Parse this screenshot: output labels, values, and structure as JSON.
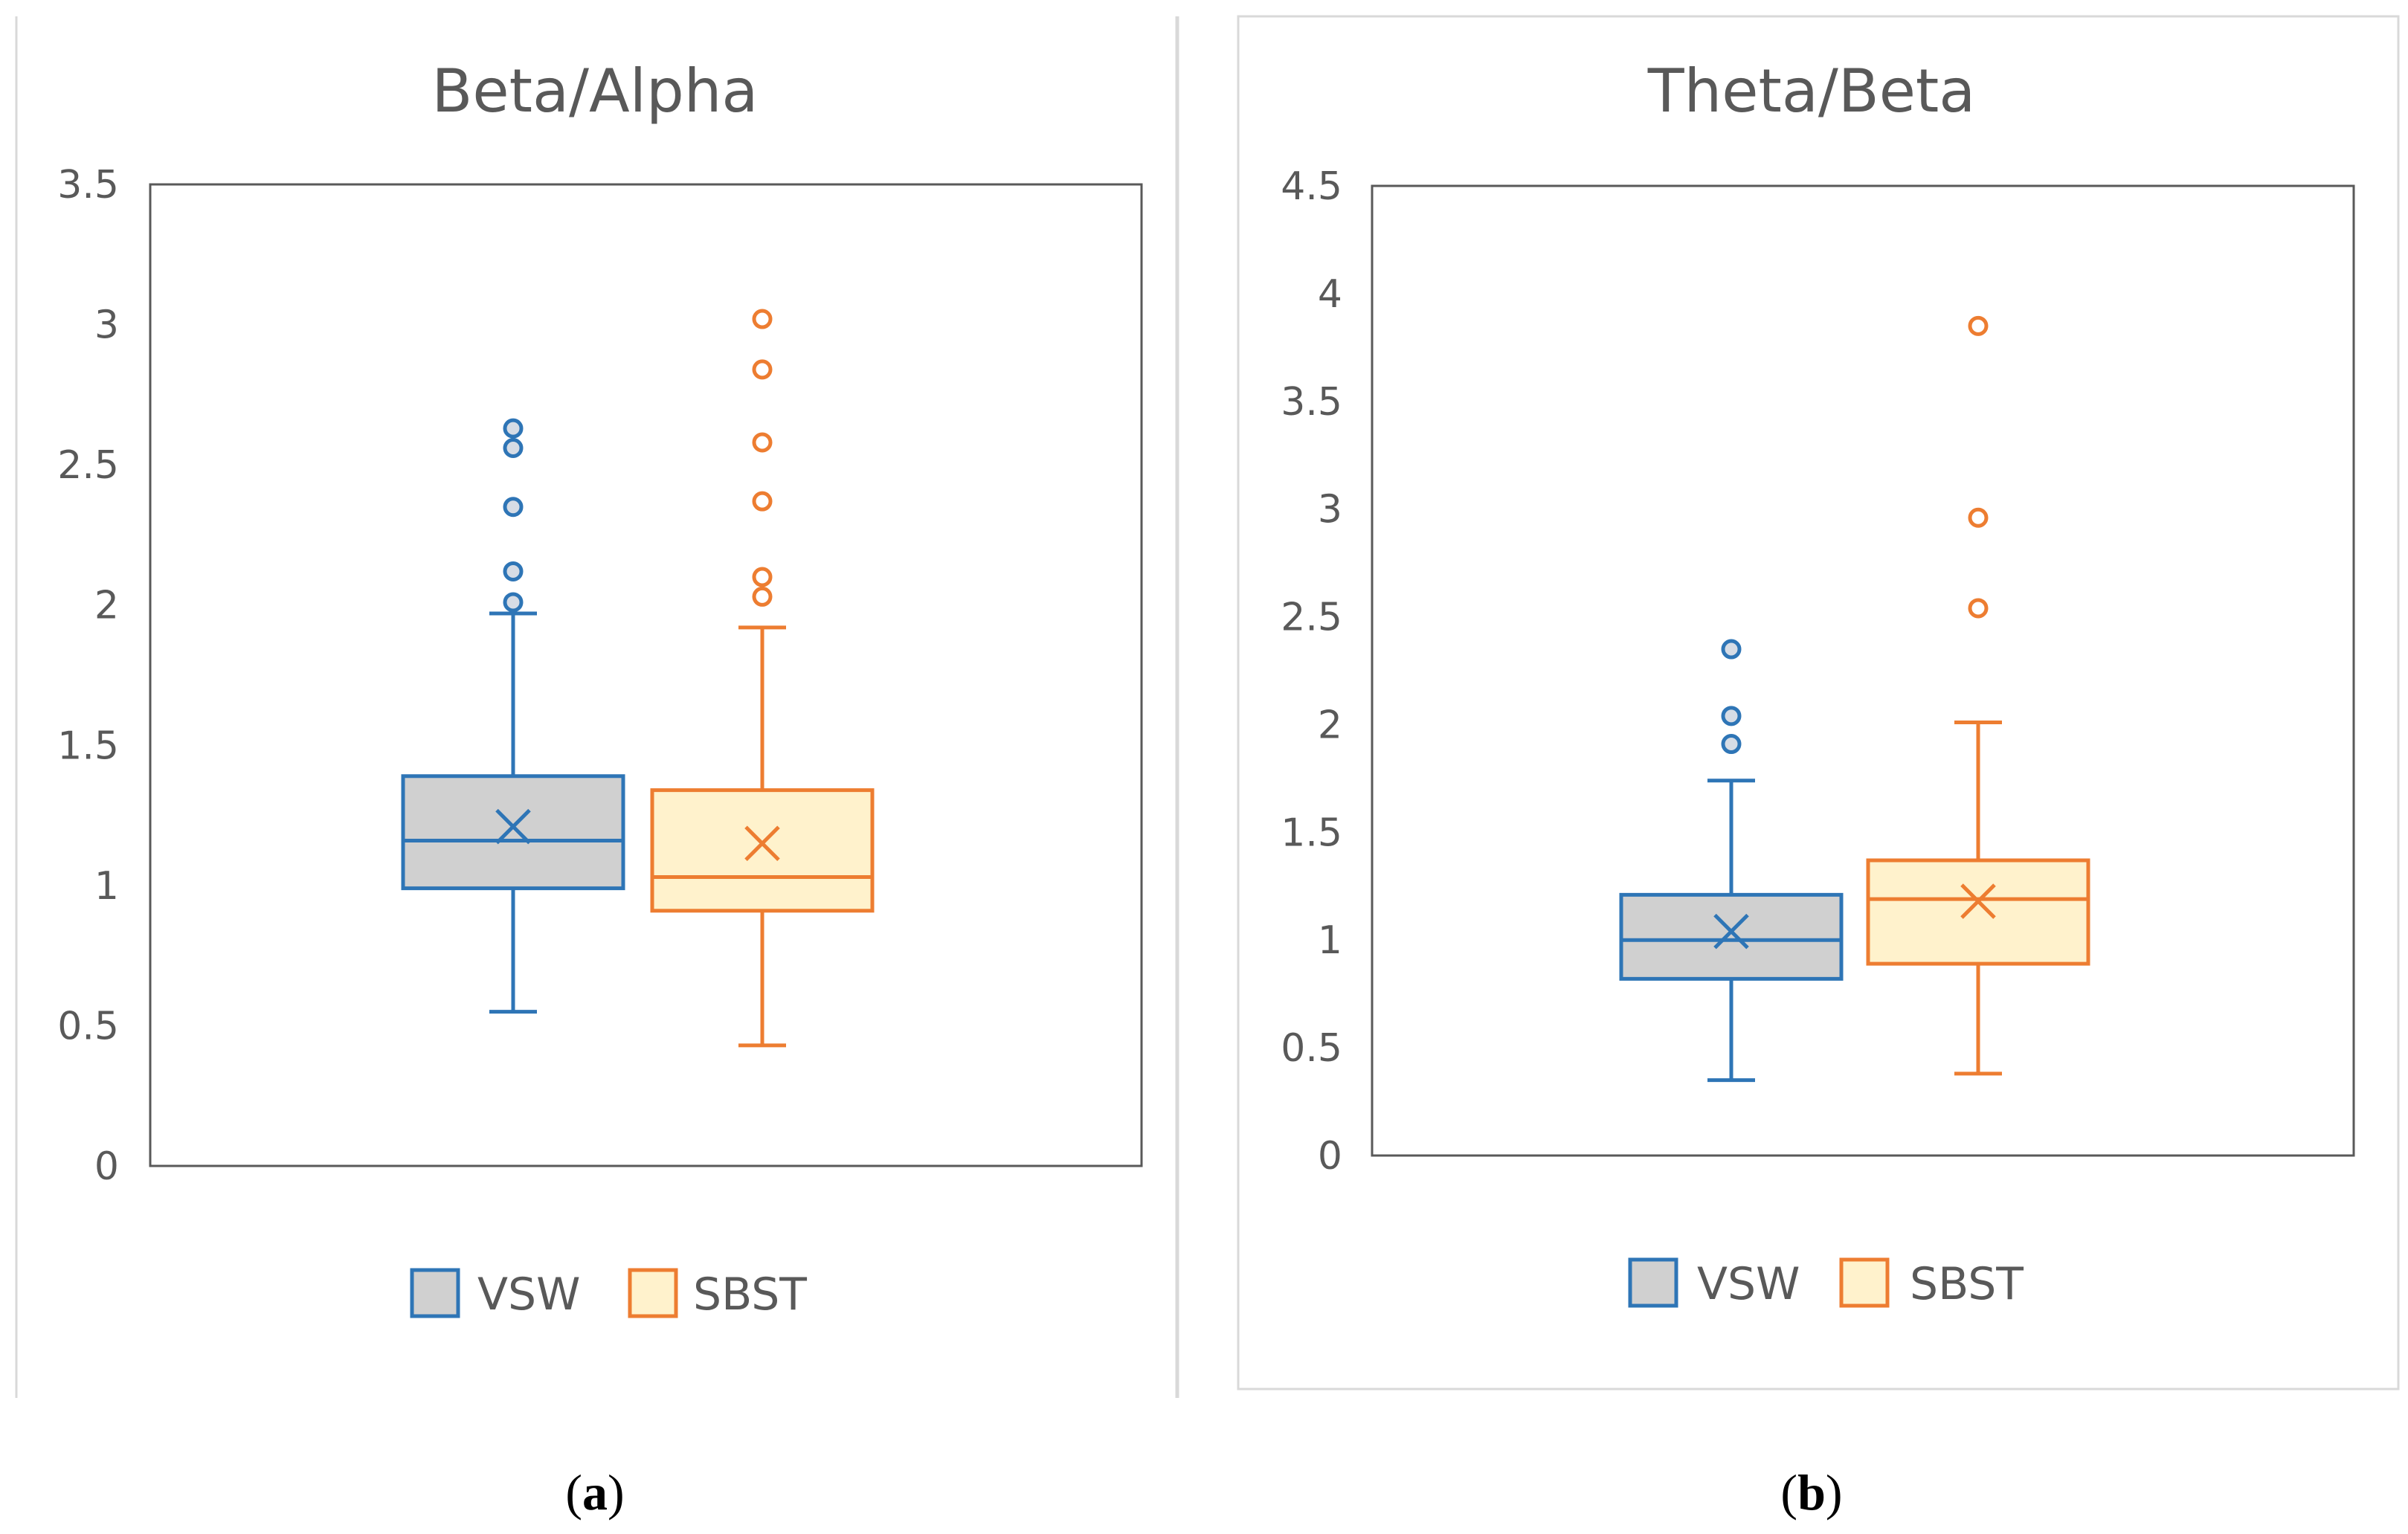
{
  "chart_data": [
    {
      "type": "box",
      "title": "Beta/Alpha",
      "ylim": [
        0,
        3.5
      ],
      "ytick_labels": [
        "0",
        "0.5",
        "1",
        "1.5",
        "2",
        "2.5",
        "3",
        "3.5"
      ],
      "series": [
        {
          "name": "VSW",
          "min": 0.55,
          "q1": 0.99,
          "median": 1.16,
          "q3": 1.39,
          "max": 1.97,
          "mean": 1.21,
          "outliers": [
            2.01,
            2.12,
            2.35,
            2.56,
            2.63
          ],
          "color": "#2e75b6",
          "fill": "#d0d0d0"
        },
        {
          "name": "SBST",
          "min": 0.43,
          "q1": 0.91,
          "median": 1.03,
          "q3": 1.34,
          "max": 1.92,
          "mean": 1.15,
          "outliers": [
            2.03,
            2.1,
            2.37,
            2.58,
            2.84,
            3.02
          ],
          "color": "#ed7d31",
          "fill": "#fff2cc"
        }
      ],
      "caption": "a"
    },
    {
      "type": "box",
      "title": "Theta/Beta",
      "ylim": [
        0,
        4.5
      ],
      "ytick_labels": [
        "0",
        "0.5",
        "1",
        "1.5",
        "2",
        "2.5",
        "3",
        "3.5",
        "4",
        "4.5"
      ],
      "series": [
        {
          "name": "VSW",
          "min": 0.35,
          "q1": 0.82,
          "median": 1.0,
          "q3": 1.21,
          "max": 1.74,
          "mean": 1.04,
          "outliers": [
            1.91,
            2.04,
            2.35
          ],
          "color": "#2e75b6",
          "fill": "#d0d0d0"
        },
        {
          "name": "SBST",
          "min": 0.38,
          "q1": 0.89,
          "median": 1.19,
          "q3": 1.37,
          "max": 2.01,
          "mean": 1.18,
          "outliers": [
            2.54,
            2.96,
            3.85
          ],
          "color": "#ed7d31",
          "fill": "#fff2cc"
        }
      ],
      "caption": "b"
    }
  ]
}
